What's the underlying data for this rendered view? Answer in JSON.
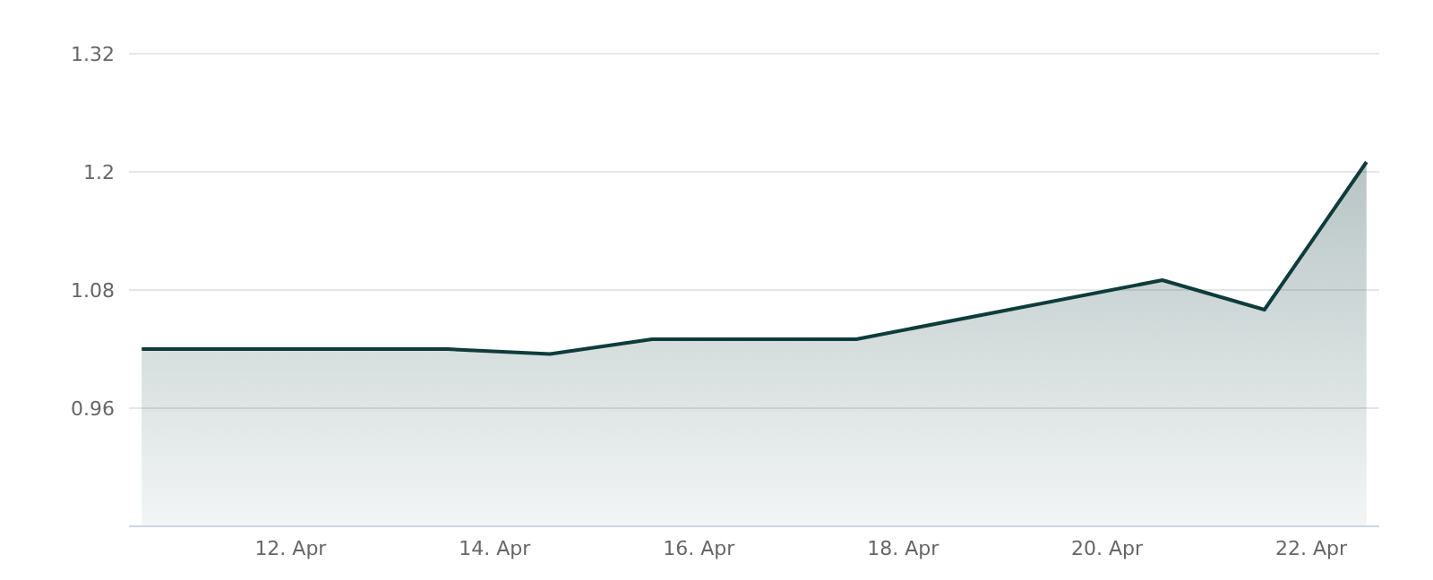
{
  "chart_data": {
    "type": "area",
    "x": [
      "--04-10T13:00",
      "--04-11T13:00",
      "--04-12T13:00",
      "--04-13T13:00",
      "--04-14T13:00",
      "--04-15T13:00",
      "--04-16T13:00",
      "--04-17T13:00",
      "--04-20T13:00",
      "--04-21T13:00",
      "--04-22T13:00"
    ],
    "series": [
      {
        "color": "#0e3c3b",
        "values": [
          1.02,
          1.02,
          1.02,
          1.02,
          1.015,
          1.03,
          1.03,
          1.03,
          1.09,
          1.06,
          1.21
        ]
      }
    ],
    "xlim": [
      "--04-10T10:00",
      "--04-22T16:00"
    ],
    "xticks": [
      {
        "value": "--04-12",
        "label": "12. Apr"
      },
      {
        "value": "--04-14",
        "label": "14. Apr"
      },
      {
        "value": "--04-16",
        "label": "16. Apr"
      },
      {
        "value": "--04-18",
        "label": "18. Apr"
      },
      {
        "value": "--04-20",
        "label": "20. Apr"
      },
      {
        "value": "--04-22",
        "label": "22. Apr"
      }
    ],
    "ylim": [
      0.84,
      1.32
    ],
    "yticks": [
      0.96,
      1.08,
      1.2,
      1.32
    ],
    "grid": "y",
    "legend": false
  }
}
